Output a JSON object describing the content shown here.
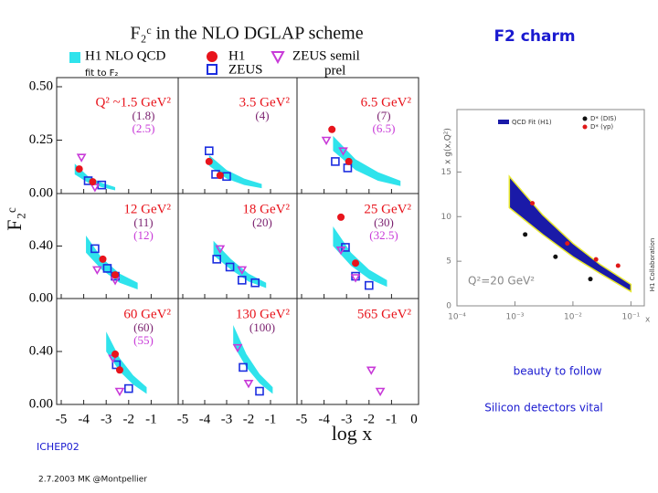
{
  "slide": {
    "heading": "F2 charm",
    "notes": [
      "beauty to follow",
      "Silicon detectors vital"
    ],
    "footer_left": "ICHEP02",
    "footer_date": "2.7.2003 MK @Montpellier"
  },
  "figure": {
    "title": "F₂ᶜ in the NLO DGLAP scheme",
    "ylabel": "F₂ᶜ",
    "xlabel": "log x",
    "legend": {
      "fit": {
        "name": "H1 NLO QCD",
        "sub": "fit to F₂",
        "color": "#2fe3ec"
      },
      "h1": {
        "name": "H1",
        "color": "#e8141c"
      },
      "zeus": {
        "name": "ZEUS",
        "color": "#1c2ee0"
      },
      "zeus_semil": {
        "name": "ZEUS semil",
        "sub": "prel",
        "color": "#c83ad8"
      }
    },
    "xlim": [
      -5,
      0
    ],
    "xticks": [
      -5,
      -4,
      -3,
      -2,
      -1
    ],
    "rows": [
      {
        "ylim": [
          0,
          0.5
        ],
        "yticks": [
          {
            "value": 0,
            "label": "0.00"
          },
          {
            "value": 0.25,
            "label": "0.25"
          },
          {
            "value": 0.5,
            "label": "0.50"
          }
        ]
      },
      {
        "ylim": [
          0,
          0.8
        ],
        "yticks": [
          {
            "value": 0,
            "label": "0.00"
          },
          {
            "value": 0.4,
            "label": "0.40"
          }
        ]
      },
      {
        "ylim": [
          0,
          0.8
        ],
        "yticks": [
          {
            "value": 0,
            "label": "0.00"
          },
          {
            "value": 0.4,
            "label": "0.40"
          }
        ]
      }
    ],
    "panels": [
      {
        "q2": "Q² ~1.5 GeV²",
        "annotations": [
          "(1.8)",
          "(2.5)"
        ],
        "fit": {
          "x": [
            -4.4,
            -3.8,
            -3.2,
            -2.6
          ],
          "lo": [
            0.09,
            0.05,
            0.03,
            0.015
          ],
          "hi": [
            0.14,
            0.08,
            0.05,
            0.03
          ]
        },
        "h1": {
          "x": [
            -4.2,
            -3.6
          ],
          "y": [
            0.115,
            0.055
          ]
        },
        "zeus": {
          "x": [
            -3.8,
            -3.2
          ],
          "y": [
            0.06,
            0.04
          ]
        },
        "zeus_semil": {
          "x": [
            -4.1,
            -3.5
          ],
          "y": [
            0.17,
            0.03
          ]
        }
      },
      {
        "q2": "3.5 GeV²",
        "annotations": [
          "(4)"
        ],
        "fit": {
          "x": [
            -3.8,
            -3.0,
            -2.2,
            -1.4
          ],
          "lo": [
            0.13,
            0.07,
            0.04,
            0.025
          ],
          "hi": [
            0.18,
            0.11,
            0.07,
            0.045
          ]
        },
        "h1": {
          "x": [
            -3.8,
            -3.3
          ],
          "y": [
            0.15,
            0.085
          ]
        },
        "zeus": {
          "x": [
            -3.8,
            -3.5,
            -3.0
          ],
          "y": [
            0.2,
            0.09,
            0.08
          ]
        },
        "zeus_semil": {
          "x": [],
          "y": []
        }
      },
      {
        "q2": "6.5 GeV²",
        "annotations": [
          "(7)",
          "(6.5)"
        ],
        "fit": {
          "x": [
            -3.6,
            -2.6,
            -1.6,
            -0.6
          ],
          "lo": [
            0.2,
            0.11,
            0.06,
            0.035
          ],
          "hi": [
            0.27,
            0.16,
            0.1,
            0.06
          ]
        },
        "h1": {
          "x": [
            -3.65,
            -2.9
          ],
          "y": [
            0.3,
            0.15
          ]
        },
        "zeus": {
          "x": [
            -3.5,
            -2.95
          ],
          "y": [
            0.15,
            0.12
          ]
        },
        "zeus_semil": {
          "x": [
            -3.9,
            -3.15
          ],
          "y": [
            0.25,
            0.2
          ]
        }
      },
      {
        "q2": "12 GeV²",
        "annotations": [
          "(11)",
          "(12)"
        ],
        "fit": {
          "x": [
            -3.9,
            -3.2,
            -2.4,
            -1.6
          ],
          "lo": [
            0.35,
            0.22,
            0.12,
            0.07
          ],
          "hi": [
            0.48,
            0.31,
            0.19,
            0.12
          ]
        },
        "h1": {
          "x": [
            -3.15,
            -2.6
          ],
          "y": [
            0.3,
            0.18
          ]
        },
        "zeus": {
          "x": [
            -3.5,
            -2.95,
            -2.6
          ],
          "y": [
            0.38,
            0.23,
            0.17
          ]
        },
        "zeus_semil": {
          "x": [
            -3.4,
            -2.6
          ],
          "y": [
            0.22,
            0.14
          ]
        }
      },
      {
        "q2": "18 GeV²",
        "annotations": [
          "(20)"
        ],
        "fit": {
          "x": [
            -3.6,
            -2.8,
            -2.0,
            -1.2
          ],
          "lo": [
            0.33,
            0.22,
            0.13,
            0.08
          ],
          "hi": [
            0.44,
            0.3,
            0.19,
            0.12
          ]
        },
        "h1": {
          "x": [],
          "y": []
        },
        "zeus": {
          "x": [
            -3.45,
            -2.85,
            -2.3,
            -1.7
          ],
          "y": [
            0.3,
            0.24,
            0.14,
            0.12
          ]
        },
        "zeus_semil": {
          "x": [
            -3.3,
            -2.3
          ],
          "y": [
            0.38,
            0.22
          ]
        }
      },
      {
        "q2": "25 GeV²",
        "annotations": [
          "(30)",
          "(32.5)"
        ],
        "fit": {
          "x": [
            -3.6,
            -2.8,
            -2.0,
            -1.2
          ],
          "lo": [
            0.4,
            0.25,
            0.15,
            0.09
          ],
          "hi": [
            0.55,
            0.35,
            0.22,
            0.14
          ]
        },
        "h1": {
          "x": [
            -3.25,
            -2.6
          ],
          "y": [
            0.62,
            0.27
          ]
        },
        "zeus": {
          "x": [
            -3.05,
            -2.6,
            -2.0
          ],
          "y": [
            0.39,
            0.17,
            0.1
          ]
        },
        "zeus_semil": {
          "x": [
            -3.25,
            -2.6
          ],
          "y": [
            0.37,
            0.16
          ]
        }
      },
      {
        "q2": "60 GeV²",
        "annotations": [
          "(60)",
          "(55)"
        ],
        "fit": {
          "x": [
            -3.0,
            -2.4,
            -1.8,
            -1.2
          ],
          "lo": [
            0.4,
            0.25,
            0.15,
            0.08
          ],
          "hi": [
            0.55,
            0.35,
            0.22,
            0.13
          ]
        },
        "h1": {
          "x": [
            -2.6,
            -2.4
          ],
          "y": [
            0.38,
            0.26
          ]
        },
        "zeus": {
          "x": [
            -2.55,
            -2.0
          ],
          "y": [
            0.3,
            0.12
          ]
        },
        "zeus_semil": {
          "x": [
            -2.7,
            -2.4
          ],
          "y": [
            0.35,
            0.1
          ]
        }
      },
      {
        "q2": "130 GeV²",
        "annotations": [
          "(100)"
        ],
        "fit": {
          "x": [
            -2.7,
            -2.1,
            -1.5,
            -0.9
          ],
          "lo": [
            0.45,
            0.28,
            0.16,
            0.08
          ],
          "hi": [
            0.6,
            0.38,
            0.23,
            0.13
          ]
        },
        "h1": {
          "x": [],
          "y": []
        },
        "zeus": {
          "x": [
            -2.25,
            -1.5
          ],
          "y": [
            0.28,
            0.1
          ]
        },
        "zeus_semil": {
          "x": [
            -2.5,
            -2.0
          ],
          "y": [
            0.43,
            0.16
          ]
        }
      },
      {
        "q2": "565 GeV²",
        "annotations": [],
        "fit": {
          "x": [],
          "lo": [],
          "hi": []
        },
        "h1": {
          "x": [],
          "y": []
        },
        "zeus": {
          "x": [],
          "y": []
        },
        "zeus_semil": {
          "x": [
            -1.9,
            -1.5
          ],
          "y": [
            0.26,
            0.1
          ]
        }
      }
    ]
  },
  "chart_data": {
    "type": "band",
    "ylabel": "x g(x,Q²)",
    "xlabel": "x",
    "side_label": "H1 Collaboration",
    "annotation": "Q²=20 GeV²",
    "log_x": true,
    "xlim": [
      0.0001,
      0.17
    ],
    "xticks": [
      {
        "value": 0.0001,
        "label": "10⁻⁴"
      },
      {
        "value": 0.001,
        "label": "10⁻³"
      },
      {
        "value": 0.01,
        "label": "10⁻²"
      },
      {
        "value": 0.1,
        "label": "10⁻¹"
      }
    ],
    "ylim": [
      0,
      22
    ],
    "yticks": [
      0,
      5,
      10,
      15
    ],
    "fit": {
      "name": "QCD Fit (H1)",
      "color": "#1a1aa8",
      "edge": "#e8e830",
      "x": [
        0.0008,
        0.003,
        0.01,
        0.03,
        0.1
      ],
      "lo": [
        11,
        8,
        5.5,
        3.6,
        1.6
      ],
      "hi": [
        14.5,
        10.2,
        7,
        4.6,
        2.4
      ]
    },
    "series": [
      {
        "name": "D* (DIS)",
        "color": "#111111",
        "x": [
          0.0015,
          0.005,
          0.02
        ],
        "values": [
          8,
          5.5,
          3
        ]
      },
      {
        "name": "D* (γp)",
        "color": "#e01818",
        "x": [
          0.002,
          0.008,
          0.025,
          0.06
        ],
        "values": [
          11.5,
          7,
          5.2,
          4.5
        ]
      }
    ]
  }
}
